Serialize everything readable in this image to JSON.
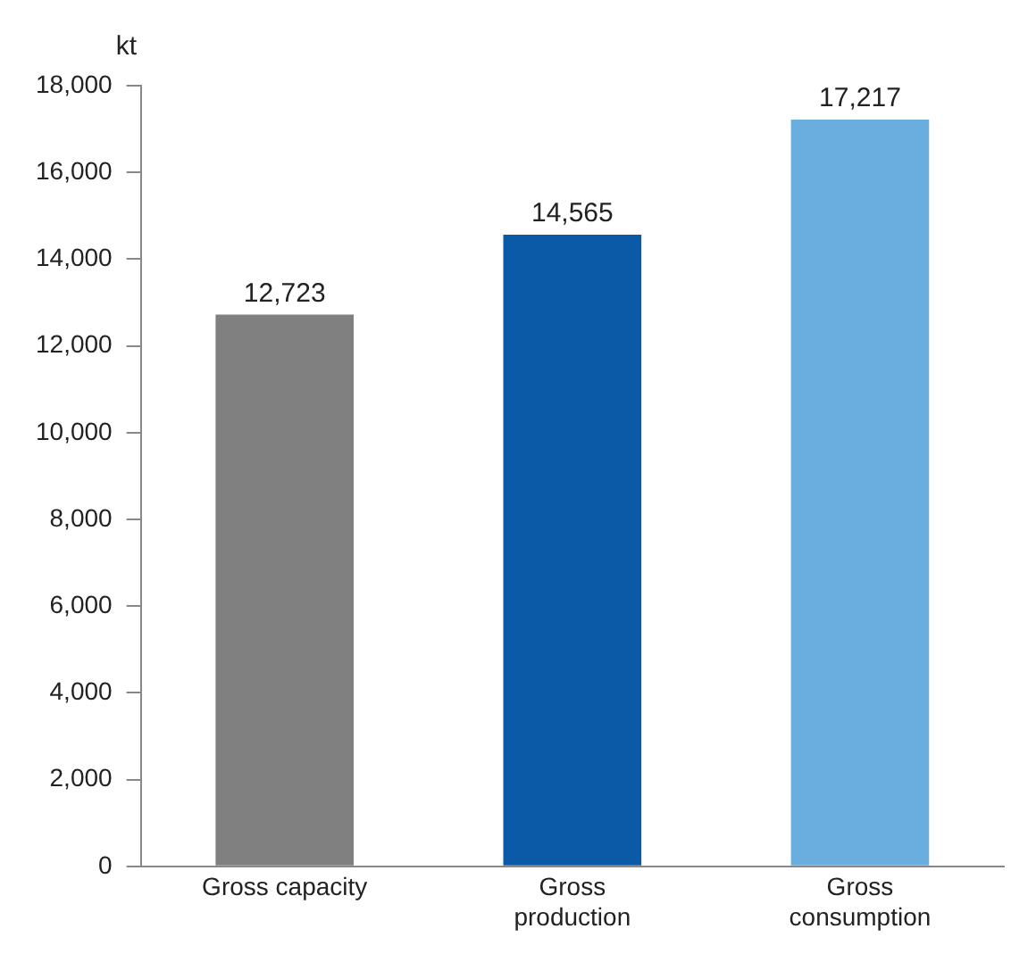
{
  "chart_data": {
    "type": "bar",
    "ylabel": "kt",
    "categories": [
      "Gross capacity",
      "Gross\nproduction",
      "Gross\nconsumption"
    ],
    "values": [
      12723,
      14565,
      17217
    ],
    "colors": [
      "#808080",
      "#0b5aa8",
      "#6aaee0"
    ],
    "value_labels": [
      "12,723",
      "14,565",
      "17,217"
    ],
    "ylim": [
      0,
      18000
    ],
    "yticks": [
      {
        "value": 0,
        "label": "0"
      },
      {
        "value": 2000,
        "label": "2,000"
      },
      {
        "value": 4000,
        "label": "4,000"
      },
      {
        "value": 6000,
        "label": "6,000"
      },
      {
        "value": 8000,
        "label": "8,000"
      },
      {
        "value": 10000,
        "label": "10,000"
      },
      {
        "value": 12000,
        "label": "12,000"
      },
      {
        "value": 14000,
        "label": "14,000"
      },
      {
        "value": 16000,
        "label": "16,000"
      },
      {
        "value": 18000,
        "label": "18,000"
      }
    ],
    "grid": false,
    "legend": false
  }
}
